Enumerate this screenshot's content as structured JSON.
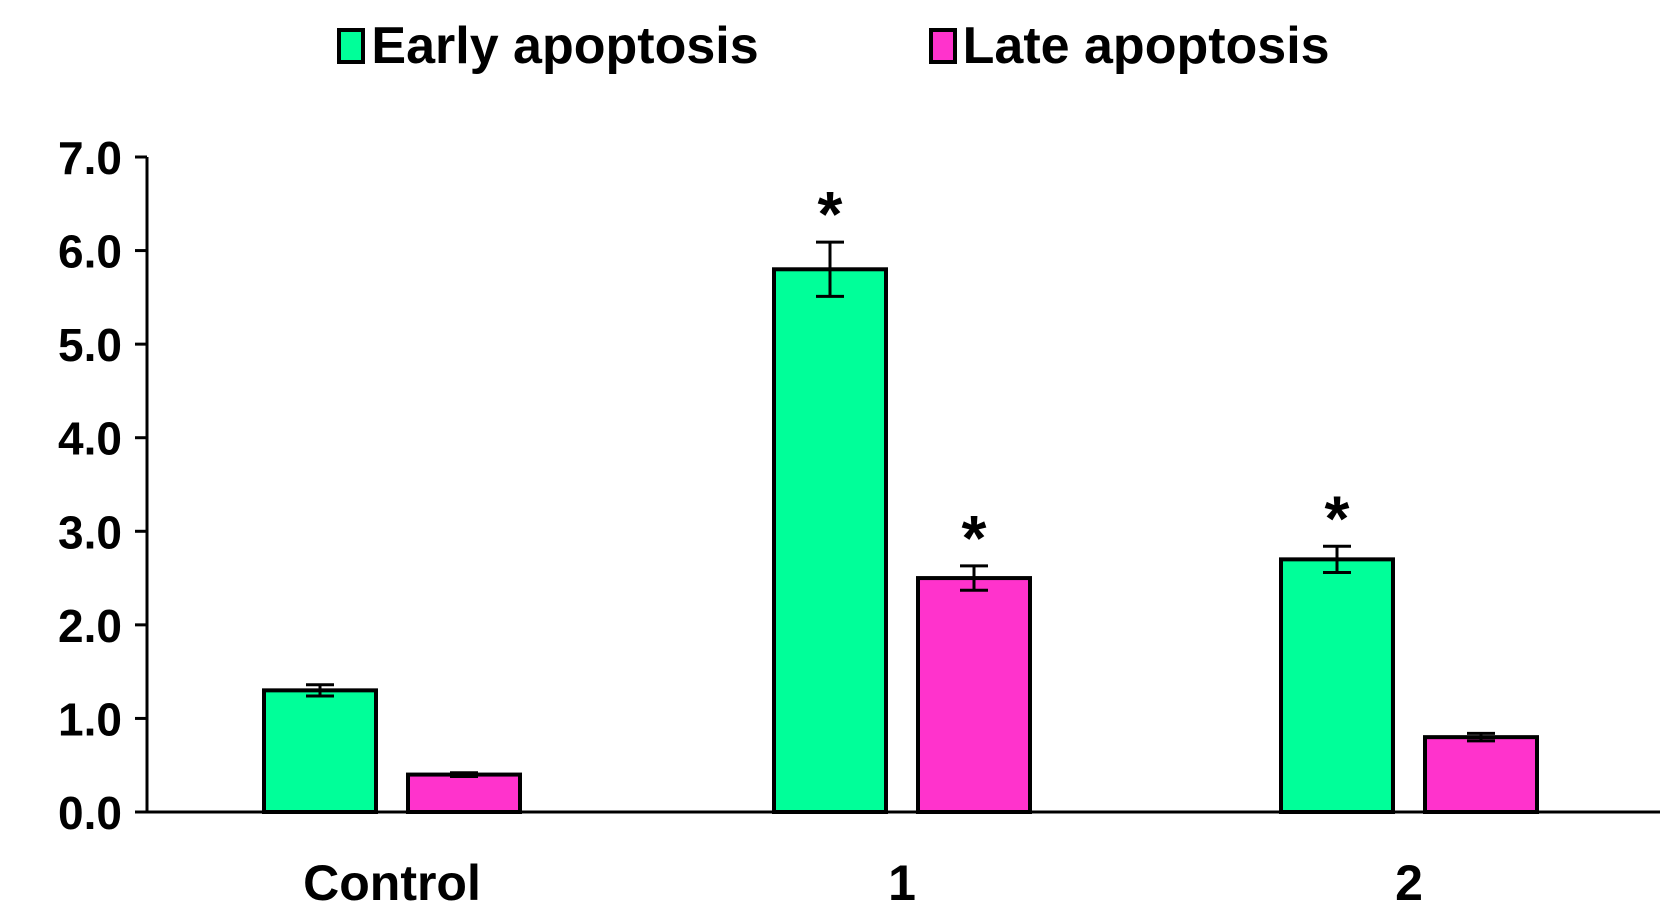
{
  "chart_data": {
    "type": "bar",
    "title": "",
    "xlabel": "",
    "ylabel": "",
    "categories": [
      "Control",
      "1",
      "2"
    ],
    "series": [
      {
        "name": "Early apoptosis",
        "color": "#00ff99",
        "values": [
          1.3,
          5.8,
          2.7
        ],
        "errors": [
          0.06,
          0.29,
          0.14
        ],
        "significance": [
          "",
          "*",
          "*"
        ]
      },
      {
        "name": "Late apoptosis",
        "color": "#ff33cc",
        "values": [
          0.4,
          2.5,
          0.8
        ],
        "errors": [
          0.02,
          0.13,
          0.04
        ],
        "significance": [
          "",
          "*",
          ""
        ]
      }
    ],
    "ylim": [
      0,
      7
    ],
    "yticks": [
      "0.0",
      "1.0",
      "2.0",
      "3.0",
      "4.0",
      "5.0",
      "6.0",
      "7.0"
    ],
    "legend_position": "top-center",
    "grid": false
  }
}
